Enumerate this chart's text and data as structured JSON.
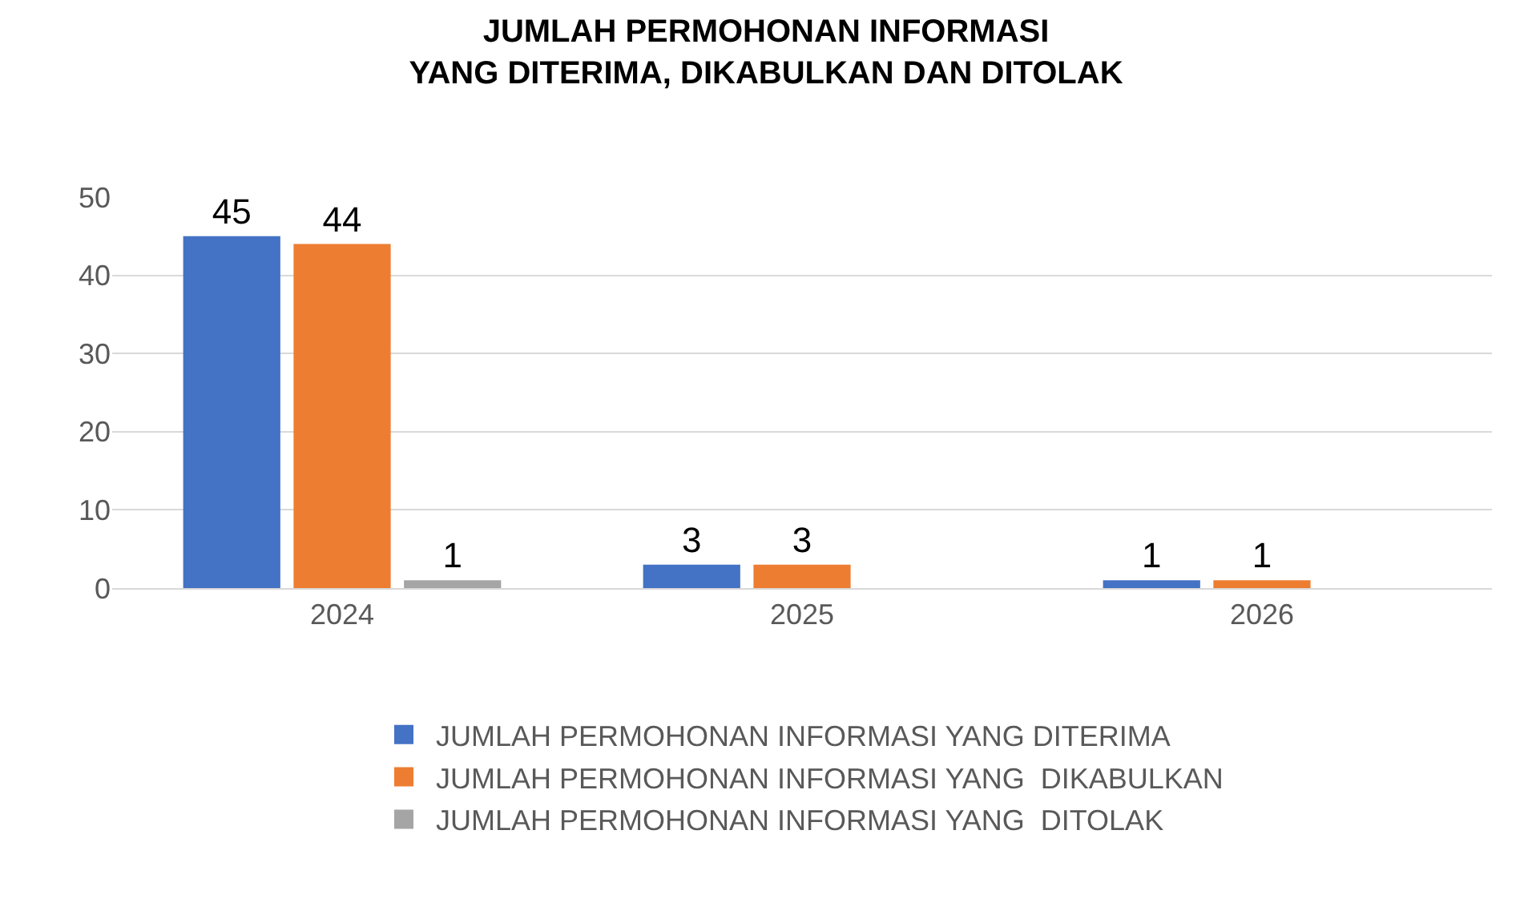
{
  "chart_data": {
    "type": "bar",
    "title": "JUMLAH PERMOHONAN INFORMASI\nYANG DITERIMA, DIKABULKAN DAN DITOLAK",
    "categories": [
      "2024",
      "2025",
      "2026"
    ],
    "series": [
      {
        "name": "JUMLAH PERMOHONAN INFORMASI YANG DITERIMA",
        "color": "#4472c4",
        "values": [
          45,
          3,
          1
        ]
      },
      {
        "name": "JUMLAH PERMOHONAN INFORMASI YANG  DIKABULKAN",
        "color": "#ed7d31",
        "values": [
          44,
          3,
          1
        ]
      },
      {
        "name": "JUMLAH PERMOHONAN INFORMASI YANG  DITOLAK",
        "color": "#a5a5a5",
        "values": [
          1,
          null,
          null
        ]
      }
    ],
    "ylim": [
      0,
      50
    ],
    "yticks": [
      0,
      10,
      20,
      30,
      40,
      50
    ],
    "grid": "y",
    "legend": "bottom",
    "data_labels": true
  }
}
